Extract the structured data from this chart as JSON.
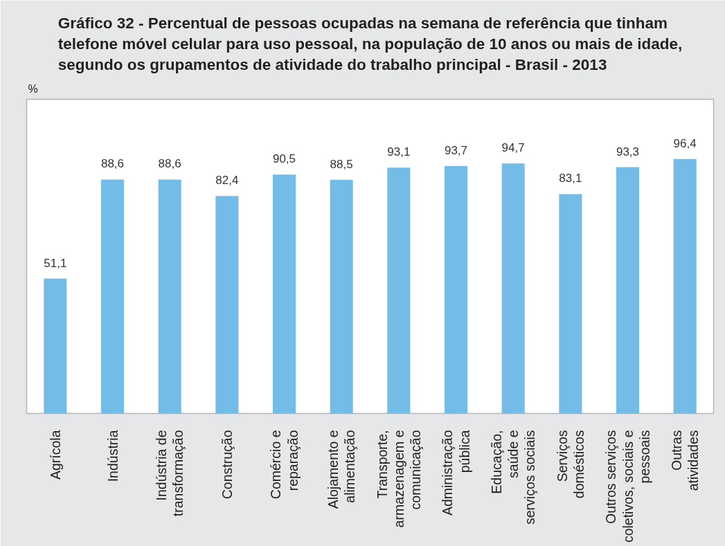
{
  "chart_data": {
    "type": "bar",
    "title": "Gráfico 32 - Percentual de pessoas ocupadas na semana de referência que tinham\ntelefone móvel celular para uso pessoal, na população de 10 anos ou mais de idade,\nsegundo os grupamentos de atividade do trabalho principal - Brasil - 2013",
    "ylabel": "%",
    "categories": [
      "Agrícola",
      "Indústria",
      "Indústria de\ntransformação",
      "Construção",
      "Comércio e\nreparação",
      "Alojamento e\nalimentação",
      "Transporte,\narmazenagem e\ncomunicação",
      "Administração\npública",
      "Educação,\nsaúde e\nserviços sociais",
      "Serviços\ndomésticos",
      "Outros serviços\ncoletivos, sociais e\npessoais",
      "Outras\natividades"
    ],
    "values": [
      51.1,
      88.6,
      88.6,
      82.4,
      90.5,
      88.5,
      93.1,
      93.7,
      94.7,
      83.1,
      93.3,
      96.4
    ],
    "value_labels": [
      "51,1",
      "88,6",
      "88,6",
      "82,4",
      "90,5",
      "88,5",
      "93,1",
      "93,7",
      "94,7",
      "83,1",
      "93,3",
      "96,4"
    ],
    "color": "#74bce8",
    "ylim": [
      0,
      119
    ],
    "tick_labels": "x",
    "grid": false
  }
}
